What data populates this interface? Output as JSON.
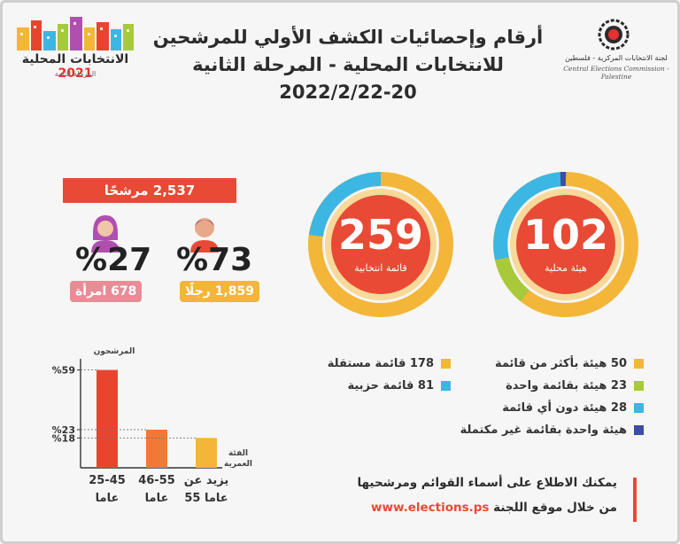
{
  "header": {
    "title_line1": "أرقام وإحصائيات الكشف الأولي للمرشحين",
    "title_line2": "للانتخابات المحلية - المرحلة الثانية",
    "title_line3": "2022/2/22-20",
    "left_logo_title": "الانتخابات المحلية",
    "left_logo_year": "2021",
    "left_logo_sub": "المرحلة الثانية",
    "cec_ar": "لجنة الانتخابات المركزية - فلسطين",
    "cec_en": "Central Elections Commission - Palestine"
  },
  "rings": {
    "lists": {
      "number": "259",
      "label": "قائمة انتخابية"
    },
    "councils": {
      "number": "102",
      "label": "هيئة محلية"
    }
  },
  "candidates": {
    "total_label": "2,537 مرشحًا",
    "men_pct": "%73",
    "men_count": "1,859 رجلًا",
    "women_pct": "%27",
    "women_count": "678 امرأة"
  },
  "lists_legend": [
    {
      "text": "178 قائمة مستقلة",
      "color": "#f4b638"
    },
    {
      "text": "81 قائمة حزبية",
      "color": "#3cb6e3"
    }
  ],
  "councils_legend": [
    {
      "text": "50 هيئة بأكثر من قائمة",
      "color": "#f4b638"
    },
    {
      "text": "23 هيئة بقائمة واحدة",
      "color": "#a8c93a"
    },
    {
      "text": "28 هيئة دون أي قائمة",
      "color": "#3cb6e3"
    },
    {
      "text": "هيئة واحدة بقائمة غير مكتملة",
      "color": "#3b4da8"
    }
  ],
  "chart_data": {
    "type": "bar",
    "title": "",
    "ylabel": "المرشحون",
    "xlabel": "الفئة العمرية",
    "categories": [
      "25-45 عاما",
      "46-55 عاما",
      "يزيد عن 55 عاما"
    ],
    "category_lines": [
      [
        "25-45",
        "عاما"
      ],
      [
        "46-55",
        "عاما"
      ],
      [
        "يزيد عن",
        "55 عاما"
      ]
    ],
    "values": [
      59,
      23,
      18
    ],
    "value_labels": [
      "%59",
      "%23",
      "%18"
    ],
    "colors": [
      "#e8452f",
      "#f07a33",
      "#f4b638"
    ],
    "ylim": [
      0,
      65
    ],
    "grid": false
  },
  "info": {
    "line1": "يمكنك الاطلاع على أسماء القوائم ومرشحيها",
    "line2_prefix": "من خلال موقع اللجنة",
    "url": "www.elections.ps"
  },
  "colors": {
    "accent": "#e84a35",
    "yellow": "#f4b638",
    "blue": "#3cb6e3",
    "green": "#a8c93a",
    "navy": "#3b4da8",
    "men_pill": "#f4b638",
    "women_pill": "#e88c96"
  }
}
